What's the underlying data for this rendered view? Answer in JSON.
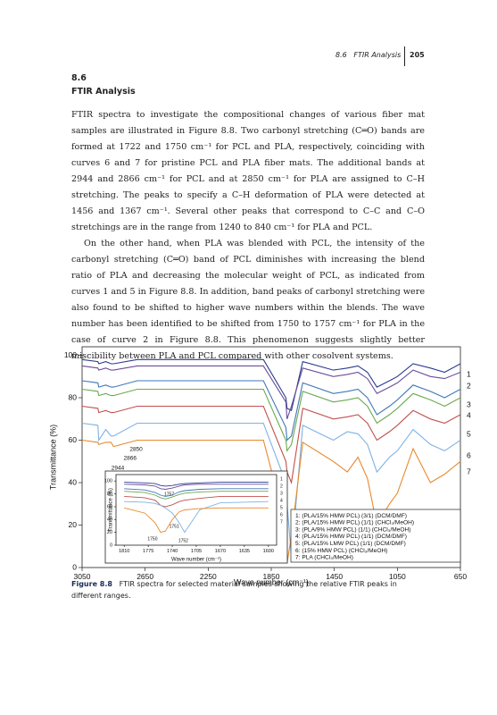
{
  "header": {
    "section": "8.6",
    "title": "FTIR Analysis",
    "page": "205"
  },
  "section": {
    "number": "8.6",
    "title": "FTIR Analysis"
  },
  "paragraphs": [
    "FTIR spectra to investigate the compositional changes of various fiber mat samples are illustrated in Figure 8.8. Two carbonyl stretching (C═O) bands are formed at 1722 and 1750 cm⁻¹ for PCL and PLA, respectively, coinciding with curves 6 and 7 for pristine PCL and PLA fiber mats. The additional bands at 2944 and 2866 cm⁻¹ for PCL and at 2850 cm⁻¹ for PLA are assigned to C–H stretching. The peaks to specify a C–H deformation of PLA were detected at 1456 and 1367 cm⁻¹. Several other peaks that correspond to C–C and C–O stretchings are in the range from 1240 to 840 cm⁻¹ for PLA and PCL.",
    "On the other hand, when PLA was blended with PCL, the intensity of the carbonyl stretching (C═O) band of PCL diminishes with increasing the blend ratio of PLA and decreasing the molecular weight of PCL, as indicated from curves 1 and 5 in Figure 8.8. In addition, band peaks of carbonyl stretching were also found to be shifted to higher wave numbers within the blends. The wave number has been identified to be shifted from 1750 to 1757 cm⁻¹ for PLA in the case of curve 2 in Figure 8.8. This phenomenon suggests slightly better miscibility between PLA and PCL compared with other cosolvent systems."
  ],
  "caption": {
    "label": "Figure 8.8",
    "text": "FTIR spectra for selected material samples showing the relative FTIR peaks in different ranges."
  },
  "chart_data": [
    {
      "type": "line",
      "xlabel": "Wave number (cm⁻¹)",
      "ylabel": "Transmittance (%)",
      "x": [
        3050,
        2950,
        2944,
        2900,
        2866,
        2850,
        2700,
        2500,
        2300,
        2100,
        1900,
        1757,
        1750,
        1722,
        1650,
        1456,
        1367,
        1300,
        1240,
        1180,
        1100,
        1050,
        950,
        840,
        750,
        650
      ],
      "xlim": [
        3050,
        650
      ],
      "ylim": [
        0,
        104
      ],
      "xticks": [
        3050,
        2650,
        2250,
        1850,
        1450,
        1050,
        650
      ],
      "yticks": [
        0,
        20,
        40,
        60,
        80,
        100
      ],
      "series": [
        {
          "name": "1: (PLA/15% HMW PCL) (3/1) (DCM/DMF)",
          "label": "1",
          "color": "#2b3a8f",
          "values": [
            98,
            97,
            96,
            97,
            96,
            96,
            98,
            98,
            98,
            98,
            98,
            80,
            75,
            74,
            97,
            93,
            94,
            95,
            92,
            85,
            88,
            90,
            96,
            94,
            92,
            96
          ]
        },
        {
          "name": "2: (PLA/15% HMW PCL) (1/1) (CHCl₃/MeOH)",
          "label": "2",
          "color": "#6a4c9c",
          "values": [
            95,
            94,
            93,
            94,
            93,
            93,
            95,
            95,
            95,
            95,
            95,
            78,
            70,
            76,
            94,
            90,
            91,
            92,
            89,
            82,
            85,
            87,
            93,
            90,
            89,
            92
          ]
        },
        {
          "name": "3: (PLA/9% HMW PCL) (1/1) (CHCl₃/MeOH)",
          "label": "3",
          "color": "#3f78b8",
          "values": [
            88,
            87,
            85,
            86,
            85,
            85,
            88,
            88,
            88,
            88,
            88,
            66,
            60,
            62,
            87,
            82,
            83,
            84,
            80,
            72,
            76,
            79,
            86,
            83,
            80,
            84
          ]
        },
        {
          "name": "4: (PLA/15% HMW PCL) (1/1) (DCM/DMF)",
          "label": "4",
          "color": "#6aa84f",
          "values": [
            84,
            83,
            81,
            82,
            81,
            81,
            84,
            84,
            84,
            84,
            84,
            60,
            55,
            58,
            83,
            78,
            79,
            80,
            76,
            68,
            72,
            75,
            82,
            79,
            76,
            80
          ]
        },
        {
          "name": "5: (PLA/15% LMW PCL) (1/1) (DCM/DMF)",
          "label": "5",
          "color": "#c0504d",
          "values": [
            76,
            75,
            73,
            74,
            73,
            73,
            76,
            76,
            76,
            76,
            76,
            50,
            45,
            40,
            75,
            70,
            71,
            72,
            68,
            60,
            64,
            67,
            74,
            70,
            68,
            72
          ]
        },
        {
          "name": "6: (15% HMW PCL) (CHCl₃/MeOH)",
          "label": "6",
          "color": "#7fb2e5",
          "values": [
            68,
            67,
            60,
            65,
            62,
            62,
            68,
            68,
            68,
            68,
            68,
            40,
            30,
            5,
            67,
            60,
            64,
            63,
            58,
            45,
            52,
            55,
            65,
            58,
            55,
            60
          ]
        },
        {
          "name": "7: PLA (CHCl₃/MeOH)",
          "label": "7",
          "color": "#e8892c",
          "values": [
            60,
            59,
            58,
            59,
            59,
            57,
            60,
            60,
            60,
            60,
            60,
            20,
            2,
            15,
            59,
            50,
            45,
            52,
            42,
            20,
            30,
            35,
            56,
            40,
            44,
            50
          ]
        }
      ],
      "annotations": [
        {
          "label": "2850",
          "x": 2850
        },
        {
          "label": "2866",
          "x": 2866
        },
        {
          "label": "2944",
          "x": 2944
        }
      ]
    },
    {
      "type": "line",
      "xlabel": "Wave number (cm⁻¹)",
      "ylabel": "Transmittance (%)",
      "x": [
        1810,
        1780,
        1765,
        1757,
        1750,
        1740,
        1730,
        1722,
        1700,
        1670,
        1600
      ],
      "xlim": [
        1822,
        1588
      ],
      "ylim": [
        0,
        110
      ],
      "xticks": [
        1810,
        1775,
        1740,
        1705,
        1670,
        1635,
        1600
      ],
      "yticks": [
        0,
        20,
        40,
        60,
        80,
        100
      ],
      "series": [
        {
          "label": "1",
          "color": "#2b3a8f",
          "values": [
            98,
            97,
            96,
            93,
            92,
            93,
            95,
            96,
            97,
            98,
            98
          ]
        },
        {
          "label": "2",
          "color": "#6a4c9c",
          "values": [
            95,
            94,
            92,
            88,
            87,
            89,
            92,
            94,
            95,
            95,
            95
          ]
        },
        {
          "label": "3",
          "color": "#3f78b8",
          "values": [
            88,
            86,
            82,
            78,
            76,
            78,
            83,
            85,
            87,
            88,
            88
          ]
        },
        {
          "label": "4",
          "color": "#6aa84f",
          "values": [
            84,
            82,
            78,
            74,
            72,
            75,
            79,
            81,
            83,
            84,
            84
          ]
        },
        {
          "label": "5",
          "color": "#c0504d",
          "values": [
            76,
            74,
            70,
            62,
            60,
            63,
            68,
            70,
            73,
            76,
            76
          ]
        },
        {
          "label": "6",
          "color": "#7fb2e5",
          "values": [
            68,
            67,
            65,
            62,
            58,
            50,
            35,
            20,
            55,
            66,
            68
          ]
        },
        {
          "label": "7",
          "color": "#e8892c",
          "values": [
            58,
            50,
            35,
            20,
            22,
            40,
            52,
            55,
            57,
            58,
            58
          ]
        }
      ],
      "annotations": [
        {
          "label": "1757",
          "x": 1757
        },
        {
          "label": "1751",
          "x": 1751
        },
        {
          "label": "1750",
          "x": 1750
        },
        {
          "label": "1752",
          "x": 1752
        }
      ]
    }
  ]
}
